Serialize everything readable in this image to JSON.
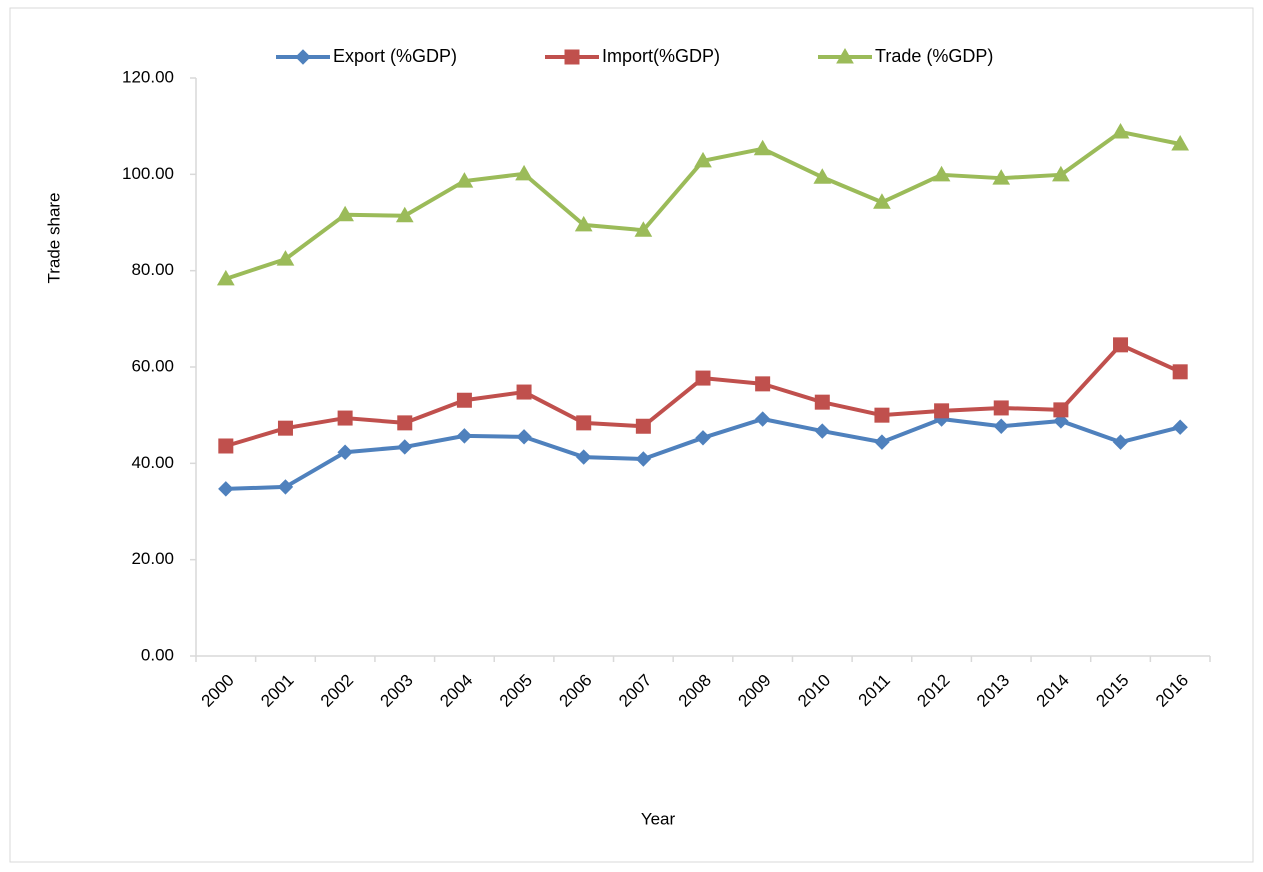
{
  "chart_data": {
    "type": "line",
    "x_label": "Year",
    "y_label": "Trade share",
    "categories": [
      "2000",
      "2001",
      "2002",
      "2003",
      "2004",
      "2005",
      "2006",
      "2007",
      "2008",
      "2009",
      "2010",
      "2011",
      "2012",
      "2013",
      "2014",
      "2015",
      "2016"
    ],
    "series": [
      {
        "name": "Export (%GDP)",
        "color": "#4f81bd",
        "marker": "diamond",
        "values": [
          34.7,
          35.1,
          42.3,
          43.4,
          45.7,
          45.5,
          41.3,
          40.9,
          45.3,
          49.2,
          46.7,
          44.4,
          49.2,
          47.7,
          48.8,
          44.4,
          47.5
        ]
      },
      {
        "name": "Import(%GDP)",
        "color": "#c0504d",
        "marker": "square",
        "values": [
          43.6,
          47.3,
          49.4,
          48.4,
          53.1,
          54.8,
          48.4,
          47.7,
          57.7,
          56.5,
          52.7,
          50.0,
          50.9,
          51.5,
          51.1,
          64.6,
          59.0
        ]
      },
      {
        "name": "Trade (%GDP)",
        "color": "#9bbb59",
        "marker": "triangle",
        "values": [
          78.3,
          82.4,
          91.6,
          91.4,
          98.6,
          100.1,
          89.5,
          88.4,
          102.8,
          105.3,
          99.4,
          94.2,
          99.9,
          99.2,
          99.9,
          108.8,
          106.3
        ]
      }
    ],
    "ylim": [
      0,
      120
    ],
    "yticks": [
      {
        "value": 0,
        "label": "0.00"
      },
      {
        "value": 20,
        "label": "20.00"
      },
      {
        "value": 40,
        "label": "40.00"
      },
      {
        "value": 60,
        "label": "60.00"
      },
      {
        "value": 80,
        "label": "80.00"
      },
      {
        "value": 100,
        "label": "100.00"
      },
      {
        "value": 120,
        "label": "120.00"
      }
    ],
    "grid": false,
    "legend": "top"
  }
}
